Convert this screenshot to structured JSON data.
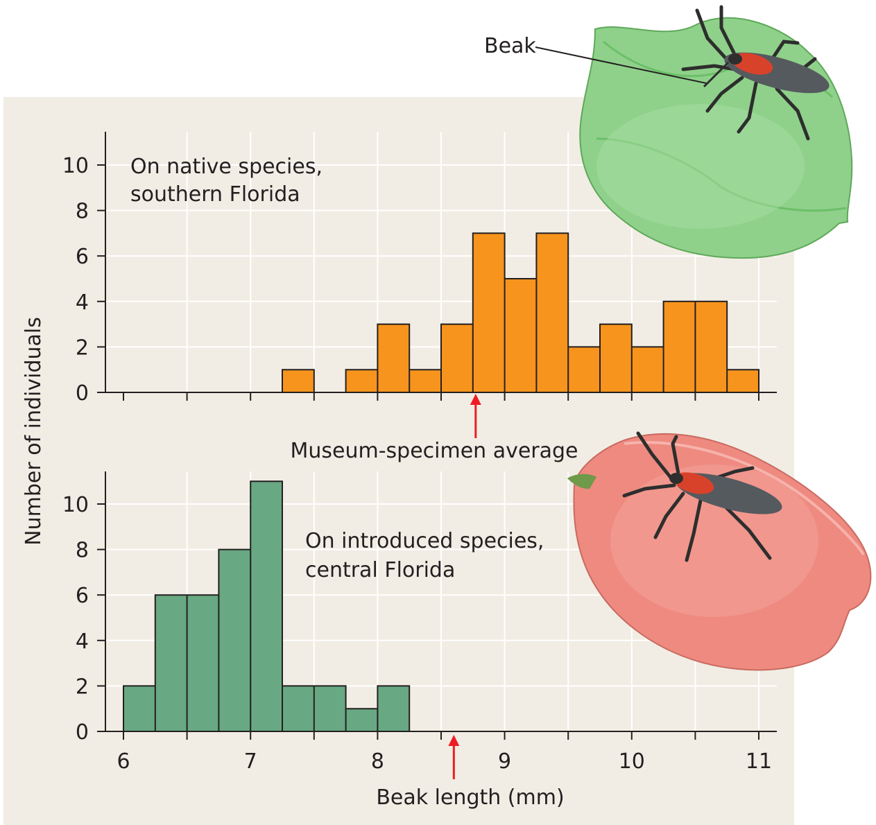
{
  "chart_data": [
    {
      "type": "bar",
      "panel": "top",
      "annotation_lines": [
        "On native species,",
        "southern Florida"
      ],
      "bin_width": 0.25,
      "bins": [
        {
          "x": 7.25,
          "value": 1
        },
        {
          "x": 7.75,
          "value": 1
        },
        {
          "x": 8.0,
          "value": 3
        },
        {
          "x": 8.25,
          "value": 1
        },
        {
          "x": 8.5,
          "value": 3
        },
        {
          "x": 8.75,
          "value": 7
        },
        {
          "x": 9.0,
          "value": 5
        },
        {
          "x": 9.25,
          "value": 7
        },
        {
          "x": 9.5,
          "value": 2
        },
        {
          "x": 9.75,
          "value": 3
        },
        {
          "x": 10.0,
          "value": 2
        },
        {
          "x": 10.25,
          "value": 4
        },
        {
          "x": 10.5,
          "value": 4
        },
        {
          "x": 10.75,
          "value": 1
        }
      ],
      "xlim": [
        6,
        11
      ],
      "ylim": [
        0,
        11
      ],
      "yticks": [
        "0",
        "2",
        "4",
        "6",
        "8",
        "10"
      ],
      "grid": true,
      "bar_color": "#f7941d",
      "marker": {
        "x": 8.75,
        "label": "Museum-specimen average",
        "color": "#ed1c24"
      }
    },
    {
      "type": "bar",
      "panel": "bottom",
      "annotation_lines": [
        "On introduced species,",
        "central Florida"
      ],
      "bin_width": 0.25,
      "bins": [
        {
          "x": 6.0,
          "value": 2
        },
        {
          "x": 6.25,
          "value": 6
        },
        {
          "x": 6.5,
          "value": 6
        },
        {
          "x": 6.75,
          "value": 8
        },
        {
          "x": 7.0,
          "value": 11
        },
        {
          "x": 7.25,
          "value": 2
        },
        {
          "x": 7.5,
          "value": 2
        },
        {
          "x": 7.75,
          "value": 1
        },
        {
          "x": 8.0,
          "value": 2
        }
      ],
      "xlim": [
        6,
        11
      ],
      "ylim": [
        0,
        11
      ],
      "yticks": [
        "0",
        "2",
        "4",
        "6",
        "8",
        "10"
      ],
      "xticks": [
        "6",
        "7",
        "8",
        "9",
        "10",
        "11"
      ],
      "grid": true,
      "bar_color": "#68a882",
      "marker": {
        "x": 8.6,
        "color": "#ed1c24"
      }
    }
  ],
  "ylabel": "Number of individuals",
  "xlabel": "Beak length (mm)",
  "callout": "Beak",
  "colors": {
    "panel_bg": "#f1ede4",
    "grid": "#ffffff",
    "axis": "#231f20",
    "orange": "#f7941d",
    "green": "#68a882",
    "arrow": "#ed1c24"
  },
  "illustrations": [
    "bug-on-green-fruit-icon",
    "bug-on-red-fruit-icon"
  ]
}
